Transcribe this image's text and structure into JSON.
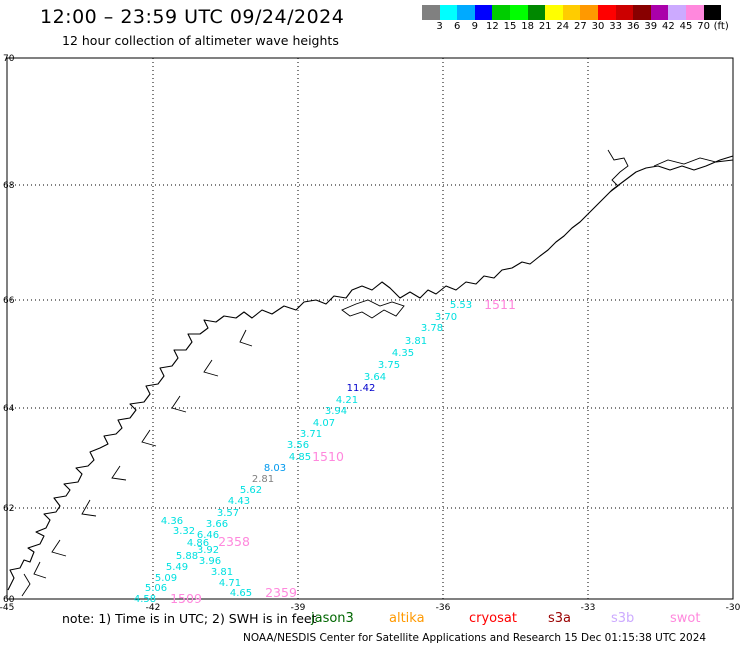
{
  "header": {
    "title": "12:00 – 23:59 UTC 09/24/2024",
    "subtitle": "12 hour collection of altimeter wave heights"
  },
  "colorbar": {
    "swatches": [
      "#808080",
      "#00ffff",
      "#00aaff",
      "#0000ff",
      "#00cc00",
      "#00ff00",
      "#008800",
      "#ffff00",
      "#ffcc00",
      "#ff9900",
      "#ff0000",
      "#cc0000",
      "#880000",
      "#aa00aa",
      "#ccaaff",
      "#ff88dd",
      "#000000"
    ],
    "labels": [
      "3",
      "6",
      "9",
      "12",
      "15",
      "18",
      "21",
      "24",
      "27",
      "30",
      "33",
      "36",
      "39",
      "42",
      "45",
      "70",
      "(ft)"
    ]
  },
  "map": {
    "lon_ticks": [
      "-45",
      "-42",
      "-39",
      "-36",
      "-33",
      "-30"
    ],
    "lat_ticks": [
      "70",
      "68",
      "66",
      "64",
      "62",
      "60"
    ],
    "wave_heights": [
      {
        "text": "5.53",
        "color": "#00e0e0"
      },
      {
        "text": "3.70",
        "color": "#00e0e0"
      },
      {
        "text": "3.78",
        "color": "#00e0e0"
      },
      {
        "text": "3.81",
        "color": "#00e0e0"
      },
      {
        "text": "4.35",
        "color": "#00e0e0"
      },
      {
        "text": "3.75",
        "color": "#00e0e0"
      },
      {
        "text": "3.64",
        "color": "#00e0e0"
      },
      {
        "text": "11.42",
        "color": "#0000cc"
      },
      {
        "text": "4.21",
        "color": "#00e0e0"
      },
      {
        "text": "3.94",
        "color": "#00e0e0"
      },
      {
        "text": "4.07",
        "color": "#00e0e0"
      },
      {
        "text": "3.71",
        "color": "#00e0e0"
      },
      {
        "text": "3.56",
        "color": "#00e0e0"
      },
      {
        "text": "4.85",
        "color": "#00e0e0"
      },
      {
        "text": "8.03",
        "color": "#0099ee"
      },
      {
        "text": "2.81",
        "color": "#808080"
      },
      {
        "text": "5.62",
        "color": "#00e0e0"
      },
      {
        "text": "4.43",
        "color": "#00e0e0"
      },
      {
        "text": "3.57",
        "color": "#00e0e0"
      },
      {
        "text": "3.66",
        "color": "#00e0e0"
      },
      {
        "text": "4.36",
        "color": "#00e0e0"
      },
      {
        "text": "3.32",
        "color": "#00e0e0"
      },
      {
        "text": "6.46",
        "color": "#00e0e0"
      },
      {
        "text": "4.86",
        "color": "#00e0e0"
      },
      {
        "text": "3.92",
        "color": "#00e0e0"
      },
      {
        "text": "5.88",
        "color": "#00e0e0"
      },
      {
        "text": "3.96",
        "color": "#00e0e0"
      },
      {
        "text": "5.49",
        "color": "#00e0e0"
      },
      {
        "text": "3.81",
        "color": "#00e0e0"
      },
      {
        "text": "5.09",
        "color": "#00e0e0"
      },
      {
        "text": "4.71",
        "color": "#00e0e0"
      },
      {
        "text": "5.06",
        "color": "#00e0e0"
      },
      {
        "text": "4.65",
        "color": "#00e0e0"
      },
      {
        "text": "4.58",
        "color": "#00e0e0"
      }
    ],
    "pass_times": [
      {
        "text": "1511",
        "color": "#ff88dd"
      },
      {
        "text": "1510",
        "color": "#ff88dd"
      },
      {
        "text": "2358",
        "color": "#ff88dd"
      },
      {
        "text": "1509",
        "color": "#ff88dd"
      },
      {
        "text": "2359",
        "color": "#ff88dd"
      }
    ]
  },
  "footer": {
    "note": "note:  1) Time is in UTC;  2) SWH is in feet",
    "satellites": [
      {
        "name": "jason3",
        "color": "#006600"
      },
      {
        "name": "altika",
        "color": "#ff9900"
      },
      {
        "name": "cryosat",
        "color": "#ff0000"
      },
      {
        "name": "s3a",
        "color": "#990000"
      },
      {
        "name": "s3b",
        "color": "#ccaaff"
      },
      {
        "name": "swot",
        "color": "#ff88dd"
      }
    ],
    "credit": "NOAA/NESDIS Center for Satellite Applications and Research     15 Dec 01:15:38 UTC 2024"
  }
}
